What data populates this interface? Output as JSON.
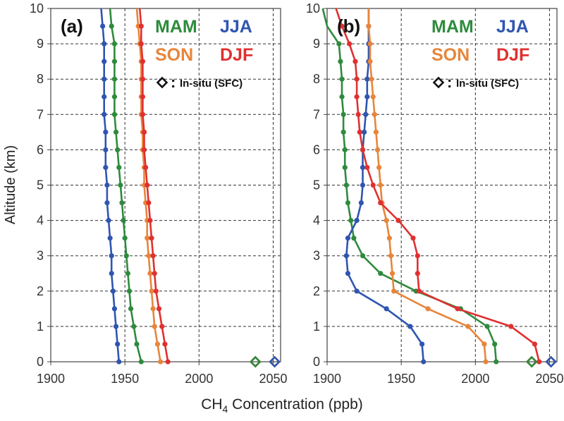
{
  "chart_data": {
    "type": "line",
    "xlabel_main": "CH",
    "xlabel_sub": "4",
    "xlabel_rest": " Concentration (ppb)",
    "ylabel": "Altitude (km)",
    "xlim": [
      1900,
      2055
    ],
    "ylim": [
      0,
      10
    ],
    "xticks": [
      "1900",
      "1950",
      "2000",
      "2050"
    ],
    "yticks": [
      "0",
      "1",
      "2",
      "3",
      "4",
      "5",
      "6",
      "7",
      "8",
      "9",
      "10"
    ],
    "legend": {
      "labels": [
        "MAM",
        "JJA",
        "SON",
        "DJF"
      ],
      "insitu_label": "In-situ (SFC)"
    },
    "colors": {
      "MAM": "#2e8b3d",
      "JJA": "#2f55b0",
      "SON": "#e8853a",
      "DJF": "#e03030",
      "axis": "#444444",
      "grid": "#333333"
    },
    "panels": [
      {
        "label": "(a)",
        "altitude": [
          0,
          0.5,
          1,
          1.5,
          2,
          2.5,
          3,
          3.5,
          4,
          4.5,
          5,
          5.5,
          6,
          6.5,
          7,
          7.5,
          8,
          8.5,
          9,
          9.5,
          10
        ],
        "series": [
          {
            "name": "MAM",
            "values": [
              1961,
              1958,
              1956,
              1954,
              1953,
              1952,
              1951,
              1950,
              1949,
              1948,
              1947,
              1946,
              1945,
              1944,
              1943,
              1943,
              1943,
              1943,
              1943,
              1941,
              1940
            ],
            "markers_to": 9.5
          },
          {
            "name": "JJA",
            "values": [
              1946,
              1945,
              1944,
              1943,
              1942,
              1941,
              1941,
              1940,
              1939,
              1938,
              1938,
              1937,
              1937,
              1937,
              1936,
              1936,
              1936,
              1936,
              1936,
              1935,
              1934
            ],
            "markers_to": 9.5
          },
          {
            "name": "SON",
            "values": [
              1974,
              1972,
              1970,
              1969,
              1968,
              1967,
              1966,
              1965,
              1965,
              1964,
              1963,
              1963,
              1962,
              1962,
              1961,
              1961,
              1961,
              1961,
              1960,
              1959,
              1958
            ],
            "markers_to": 9.5
          },
          {
            "name": "DJF",
            "values": [
              1979,
              1977,
              1975,
              1973,
              1971,
              1970,
              1969,
              1968,
              1967,
              1966,
              1965,
              1964,
              1963,
              1963,
              1962,
              1962,
              1962,
              1962,
              1961,
              1961,
              1960
            ],
            "markers_to": 9.5
          }
        ],
        "insitu": [
          {
            "name": "DJF",
            "value": 2038
          },
          {
            "name": "MAM",
            "value": 2038
          },
          {
            "name": "SON",
            "value": 2051
          },
          {
            "name": "JJA",
            "value": 2051
          }
        ]
      },
      {
        "label": "(b)",
        "altitude": [
          0,
          0.5,
          1,
          1.5,
          2,
          2.5,
          3,
          3.5,
          4,
          4.5,
          5,
          5.5,
          6,
          6.5,
          7,
          7.5,
          8,
          8.5,
          9,
          9.5,
          10
        ],
        "series": [
          {
            "name": "MAM",
            "values": [
              2014,
              2013,
              2008,
              1990,
              1960,
              1936,
              1924,
              1918,
              1916,
              1914,
              1913,
              1912,
              1912,
              1911,
              1911,
              1910,
              1910,
              1909,
              1908,
              1900,
              1897
            ],
            "markers_to": 9.0
          },
          {
            "name": "JJA",
            "values": [
              1965,
              1964,
              1956,
              1940,
              1920,
              1914,
              1913,
              1914,
              1920,
              1923,
              1924,
              1924,
              1924,
              1925,
              1926,
              1927,
              1927,
              1928,
              1928,
              1928,
              1928
            ],
            "markers_to": 9.5
          },
          {
            "name": "SON",
            "values": [
              2007,
              2006,
              1995,
              1968,
              1945,
              1944,
              1943,
              1942,
              1940,
              1937,
              1936,
              1935,
              1934,
              1933,
              1932,
              1931,
              1930,
              1929,
              1929,
              1928,
              1928
            ],
            "markers_to": 9.5
          },
          {
            "name": "DJF",
            "values": [
              2043,
              2040,
              2024,
              1988,
              1962,
              1961,
              1961,
              1958,
              1948,
              1936,
              1931,
              1927,
              1924,
              1922,
              1921,
              1920,
              1920,
              1919,
              1915,
              1910,
              1906
            ],
            "markers_to": 9.5
          }
        ],
        "insitu": [
          {
            "name": "DJF",
            "value": 2038
          },
          {
            "name": "MAM",
            "value": 2038
          },
          {
            "name": "SON",
            "value": 2051
          },
          {
            "name": "JJA",
            "value": 2051
          }
        ]
      }
    ]
  }
}
